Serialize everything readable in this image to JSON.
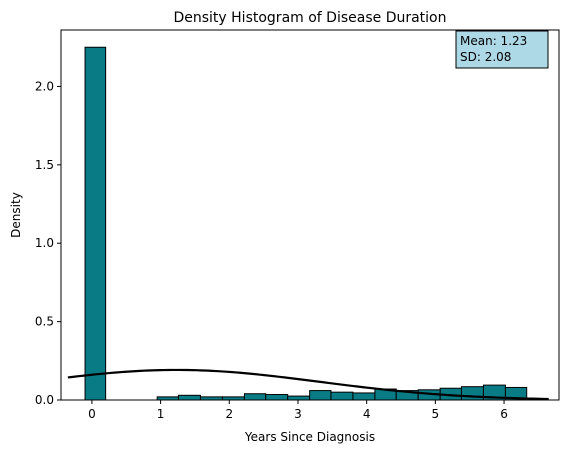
{
  "chart_data": {
    "type": "bar",
    "title": "Density Histogram of Disease Duration",
    "xlabel": "Years Since Diagnosis",
    "ylabel": "Density",
    "xlim": [
      -0.45,
      6.8
    ],
    "ylim": [
      0,
      2.36
    ],
    "xticks": [
      0,
      1,
      2,
      3,
      4,
      5,
      6
    ],
    "yticks": [
      0.0,
      0.5,
      1.0,
      1.5,
      2.0
    ],
    "bar_color": "#087b85",
    "edge_color": "#000000",
    "bins": [
      {
        "x0": -0.1,
        "x1": 0.2,
        "value": 2.25
      },
      {
        "x0": 0.2,
        "x1": 0.5,
        "value": 0.0
      },
      {
        "x0": 0.5,
        "x1": 0.8,
        "value": 0.0
      },
      {
        "x0": 0.95,
        "x1": 1.26,
        "value": 0.02
      },
      {
        "x0": 1.26,
        "x1": 1.58,
        "value": 0.03
      },
      {
        "x0": 1.58,
        "x1": 1.9,
        "value": 0.02
      },
      {
        "x0": 1.9,
        "x1": 2.22,
        "value": 0.02
      },
      {
        "x0": 2.22,
        "x1": 2.53,
        "value": 0.04
      },
      {
        "x0": 2.53,
        "x1": 2.85,
        "value": 0.035
      },
      {
        "x0": 2.85,
        "x1": 3.17,
        "value": 0.025
      },
      {
        "x0": 3.17,
        "x1": 3.48,
        "value": 0.06
      },
      {
        "x0": 3.48,
        "x1": 3.8,
        "value": 0.05
      },
      {
        "x0": 3.8,
        "x1": 4.12,
        "value": 0.045
      },
      {
        "x0": 4.12,
        "x1": 4.43,
        "value": 0.07
      },
      {
        "x0": 4.43,
        "x1": 4.75,
        "value": 0.06
      },
      {
        "x0": 4.75,
        "x1": 5.07,
        "value": 0.065
      },
      {
        "x0": 5.07,
        "x1": 5.38,
        "value": 0.075
      },
      {
        "x0": 5.38,
        "x1": 5.7,
        "value": 0.085
      },
      {
        "x0": 5.7,
        "x1": 6.02,
        "value": 0.095
      },
      {
        "x0": 6.02,
        "x1": 6.33,
        "value": 0.08
      }
    ],
    "normal_curve": {
      "mean": 1.23,
      "sd": 2.08,
      "x_range": [
        -0.35,
        6.65
      ],
      "color": "#000000"
    },
    "annotation": {
      "lines": [
        "Mean: 1.23",
        "SD: 2.08"
      ],
      "background": "#add8e6",
      "placement": "top-right"
    }
  }
}
